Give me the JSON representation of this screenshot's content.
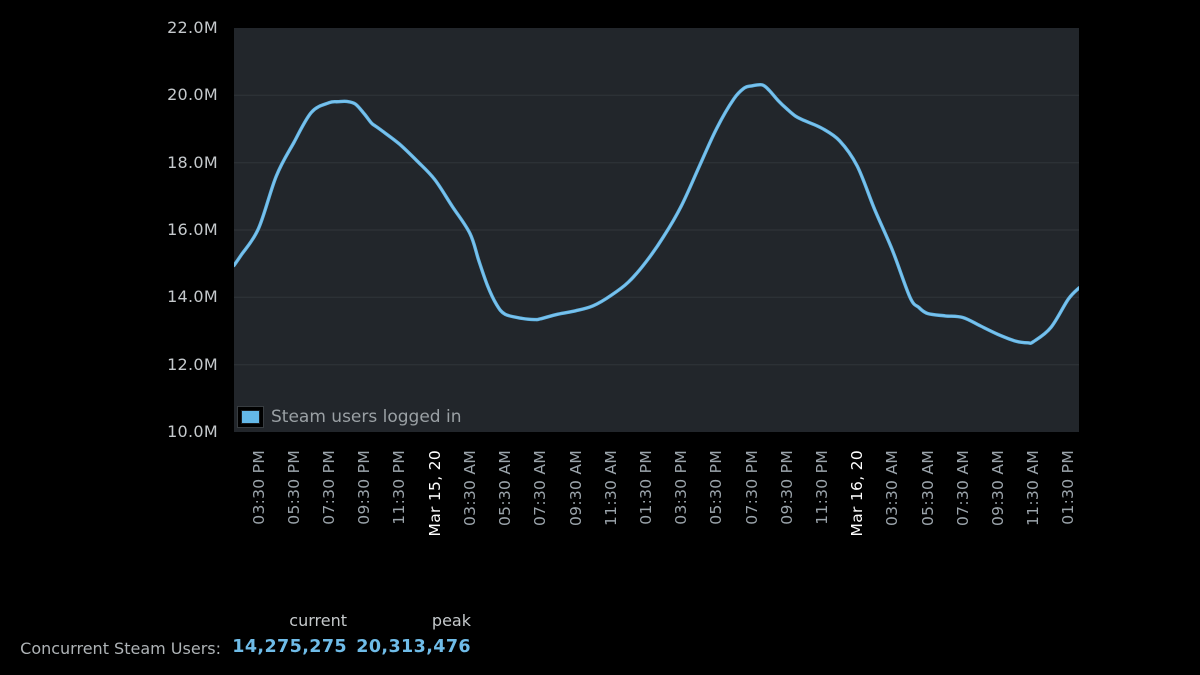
{
  "colors": {
    "page_bg": "#000000",
    "plot_bg": "#22262b",
    "grid": "#2c3136",
    "line": "#64b8e8",
    "axis_label": "#c5c9cc",
    "tick_label": "#9ba4ab",
    "date_label": "#ffffff",
    "legend_text": "#9aa0a4",
    "stats_label": "#aeb3b6",
    "stats_header": "#c5c9cb",
    "stats_value": "#6fbce8"
  },
  "chart_data": {
    "type": "line",
    "title": "",
    "xlabel": "",
    "ylabel": "",
    "y_unit_suffix": "M",
    "grid": "horizontal",
    "legend_position": "inside-bottom-left",
    "x_range_hours": [
      -1.4,
      46.6
    ],
    "y_range_millions": [
      10,
      22
    ],
    "y_ticks": [
      {
        "label": "22.0M",
        "value": 22
      },
      {
        "label": "20.0M",
        "value": 20
      },
      {
        "label": "18.0M",
        "value": 18
      },
      {
        "label": "16.0M",
        "value": 16
      },
      {
        "label": "14.0M",
        "value": 14
      },
      {
        "label": "12.0M",
        "value": 12
      },
      {
        "label": "10.0M",
        "value": 10
      }
    ],
    "x_ticks": [
      {
        "label": "03:30 PM",
        "t": 0,
        "is_date": false
      },
      {
        "label": "05:30 PM",
        "t": 2,
        "is_date": false
      },
      {
        "label": "07:30 PM",
        "t": 4,
        "is_date": false
      },
      {
        "label": "09:30 PM",
        "t": 6,
        "is_date": false
      },
      {
        "label": "11:30 PM",
        "t": 8,
        "is_date": false
      },
      {
        "label": "Mar 15, 20",
        "t": 10,
        "is_date": true
      },
      {
        "label": "03:30 AM",
        "t": 12,
        "is_date": false
      },
      {
        "label": "05:30 AM",
        "t": 14,
        "is_date": false
      },
      {
        "label": "07:30 AM",
        "t": 16,
        "is_date": false
      },
      {
        "label": "09:30 AM",
        "t": 18,
        "is_date": false
      },
      {
        "label": "11:30 AM",
        "t": 20,
        "is_date": false
      },
      {
        "label": "01:30 PM",
        "t": 22,
        "is_date": false
      },
      {
        "label": "03:30 PM",
        "t": 24,
        "is_date": false
      },
      {
        "label": "05:30 PM",
        "t": 26,
        "is_date": false
      },
      {
        "label": "07:30 PM",
        "t": 28,
        "is_date": false
      },
      {
        "label": "09:30 PM",
        "t": 30,
        "is_date": false
      },
      {
        "label": "11:30 PM",
        "t": 32,
        "is_date": false
      },
      {
        "label": "Mar 16, 20",
        "t": 34,
        "is_date": true
      },
      {
        "label": "03:30 AM",
        "t": 36,
        "is_date": false
      },
      {
        "label": "05:30 AM",
        "t": 38,
        "is_date": false
      },
      {
        "label": "07:30 AM",
        "t": 40,
        "is_date": false
      },
      {
        "label": "09:30 AM",
        "t": 42,
        "is_date": false
      },
      {
        "label": "11:30 AM",
        "t": 44,
        "is_date": false
      },
      {
        "label": "01:30 PM",
        "t": 46,
        "is_date": false
      }
    ],
    "series": [
      {
        "name": "Steam users logged in",
        "points_t_hours_vs_millions": [
          [
            -1.4,
            14.95
          ],
          [
            -1,
            15.25
          ],
          [
            0,
            16.05
          ],
          [
            1,
            17.6
          ],
          [
            2,
            18.6
          ],
          [
            3,
            19.5
          ],
          [
            4,
            19.78
          ],
          [
            4.5,
            19.81
          ],
          [
            5,
            19.82
          ],
          [
            5.5,
            19.74
          ],
          [
            6,
            19.45
          ],
          [
            6.4,
            19.18
          ],
          [
            6.6,
            19.1
          ],
          [
            7,
            18.95
          ],
          [
            8,
            18.55
          ],
          [
            9,
            18.05
          ],
          [
            10,
            17.5
          ],
          [
            11,
            16.7
          ],
          [
            12,
            15.9
          ],
          [
            12.5,
            15.1
          ],
          [
            13,
            14.35
          ],
          [
            13.5,
            13.8
          ],
          [
            14,
            13.5
          ],
          [
            15,
            13.37
          ],
          [
            15.7,
            13.34
          ],
          [
            16,
            13.36
          ],
          [
            17,
            13.5
          ],
          [
            18,
            13.6
          ],
          [
            19,
            13.75
          ],
          [
            20,
            14.05
          ],
          [
            21,
            14.45
          ],
          [
            22,
            15.05
          ],
          [
            23,
            15.8
          ],
          [
            24,
            16.7
          ],
          [
            25,
            17.85
          ],
          [
            26,
            19.0
          ],
          [
            27,
            19.9
          ],
          [
            27.6,
            20.22
          ],
          [
            28,
            20.28
          ],
          [
            28.6,
            20.31
          ],
          [
            29,
            20.15
          ],
          [
            29.5,
            19.85
          ],
          [
            30,
            19.6
          ],
          [
            30.5,
            19.38
          ],
          [
            31,
            19.25
          ],
          [
            32,
            19.02
          ],
          [
            33,
            18.65
          ],
          [
            34,
            17.9
          ],
          [
            35,
            16.6
          ],
          [
            36,
            15.4
          ],
          [
            37,
            14.0
          ],
          [
            37.5,
            13.7
          ],
          [
            38,
            13.52
          ],
          [
            39,
            13.45
          ],
          [
            40,
            13.4
          ],
          [
            41,
            13.15
          ],
          [
            42,
            12.9
          ],
          [
            43,
            12.7
          ],
          [
            43.7,
            12.65
          ],
          [
            44,
            12.68
          ],
          [
            45,
            13.1
          ],
          [
            46,
            13.95
          ],
          [
            46.6,
            14.28
          ]
        ]
      }
    ]
  },
  "stats": {
    "label": "Concurrent Steam Users:",
    "columns": [
      {
        "header": "current",
        "value": "14,275,275"
      },
      {
        "header": "peak",
        "value": "20,313,476"
      }
    ]
  }
}
